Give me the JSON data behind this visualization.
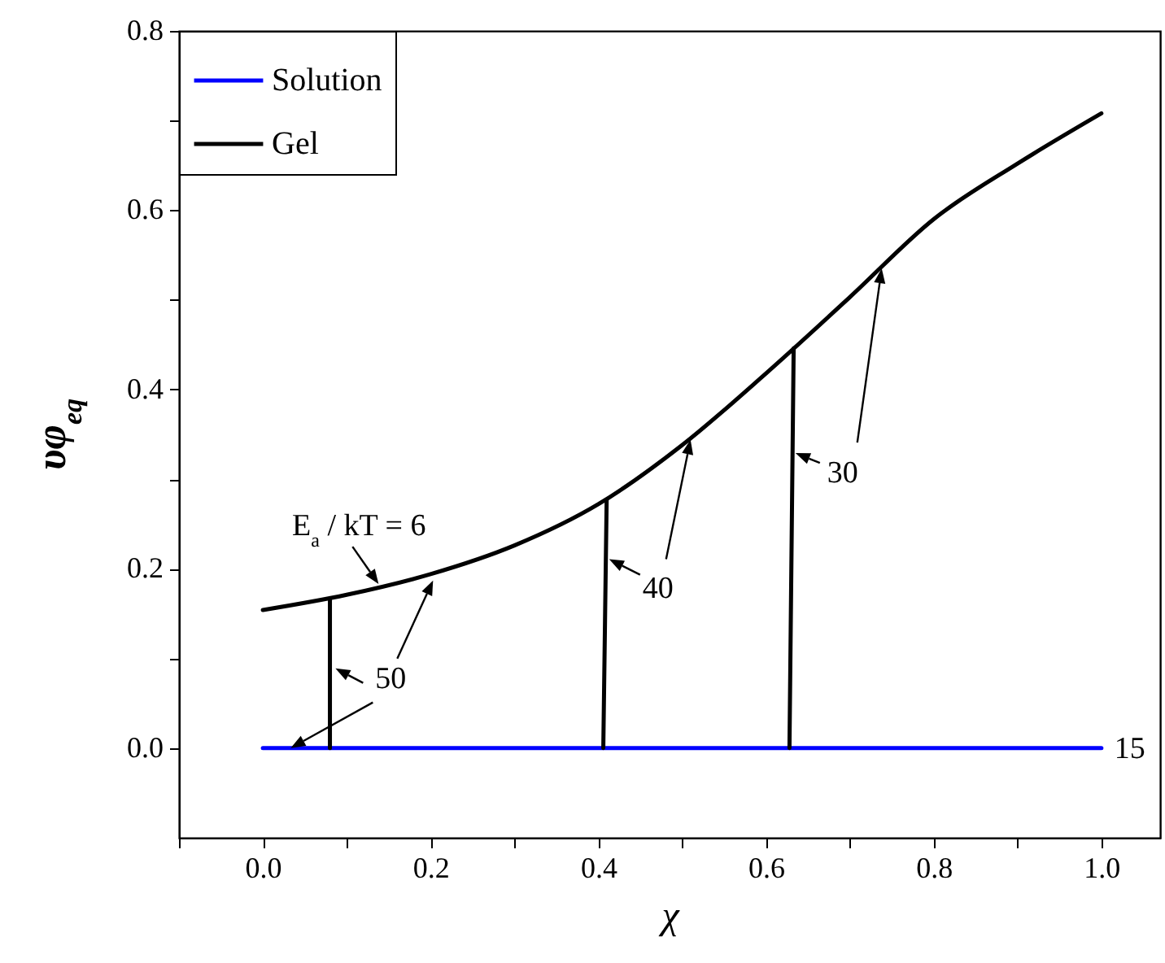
{
  "chart_data": {
    "type": "line",
    "xlabel": "χ",
    "ylabel": "υφ$_{eq}$",
    "xlim": [
      -0.1,
      1.07
    ],
    "ylim": [
      -0.1,
      0.8
    ],
    "xticks": [
      {
        "value": -0.1,
        "label": null
      },
      {
        "value": 0,
        "label": "0.0"
      },
      {
        "value": 0.1,
        "label": null
      },
      0.2,
      {
        "value": 0.3,
        "label": null
      },
      0.4,
      {
        "value": 0.5,
        "label": null
      },
      0.6,
      {
        "value": 0.7,
        "label": null
      },
      0.8,
      {
        "value": 0.9,
        "label": null
      },
      {
        "value": 1,
        "label": "1.0"
      }
    ],
    "yticks": [
      {
        "value": 0,
        "label": "0.0"
      },
      {
        "value": 0.1,
        "label": null
      },
      0.2,
      {
        "value": 0.3,
        "label": null
      },
      0.4,
      {
        "value": 0.5,
        "label": null
      },
      0.6,
      {
        "value": 0.7,
        "label": null
      },
      0.8
    ],
    "legend": "top left",
    "grid": false,
    "series": [
      {
        "name": "Solution",
        "color": "#0000ff",
        "x": [
          0,
          1
        ],
        "values": [
          0,
          0
        ]
      },
      {
        "name": "Gel",
        "color": "#000000",
        "x": [
          0,
          0.1,
          0.2,
          0.3,
          0.4,
          0.5,
          0.6,
          0.7,
          0.8,
          0.9,
          1.0
        ],
        "values": [
          0.154,
          0.171,
          0.194,
          0.226,
          0.272,
          0.338,
          0.418,
          0.503,
          0.59,
          0.652,
          0.708
        ]
      },
      {
        "color": "#000000",
        "x": [
          0.08,
          0.08
        ],
        "values": [
          0,
          0.167
        ]
      },
      {
        "color": "#000000",
        "x": [
          0.406,
          0.41
        ],
        "values": [
          0,
          0.277
        ]
      },
      {
        "color": "#000000",
        "x": [
          0.628,
          0.633
        ],
        "values": [
          0,
          0.446
        ]
      }
    ],
    "annotations": [
      {
        "text": "E$_{a}$ / kT = 6",
        "x": 0.138,
        "y": 0.183
      },
      {
        "text": "50",
        "x": 0.203,
        "y": 0.187
      },
      {
        "text": "40",
        "x": 0.51,
        "y": 0.344
      },
      {
        "text": "30",
        "x": 0.738,
        "y": 0.535
      },
      {
        "text": "15",
        "x": 1.0,
        "y": 0
      }
    ]
  }
}
